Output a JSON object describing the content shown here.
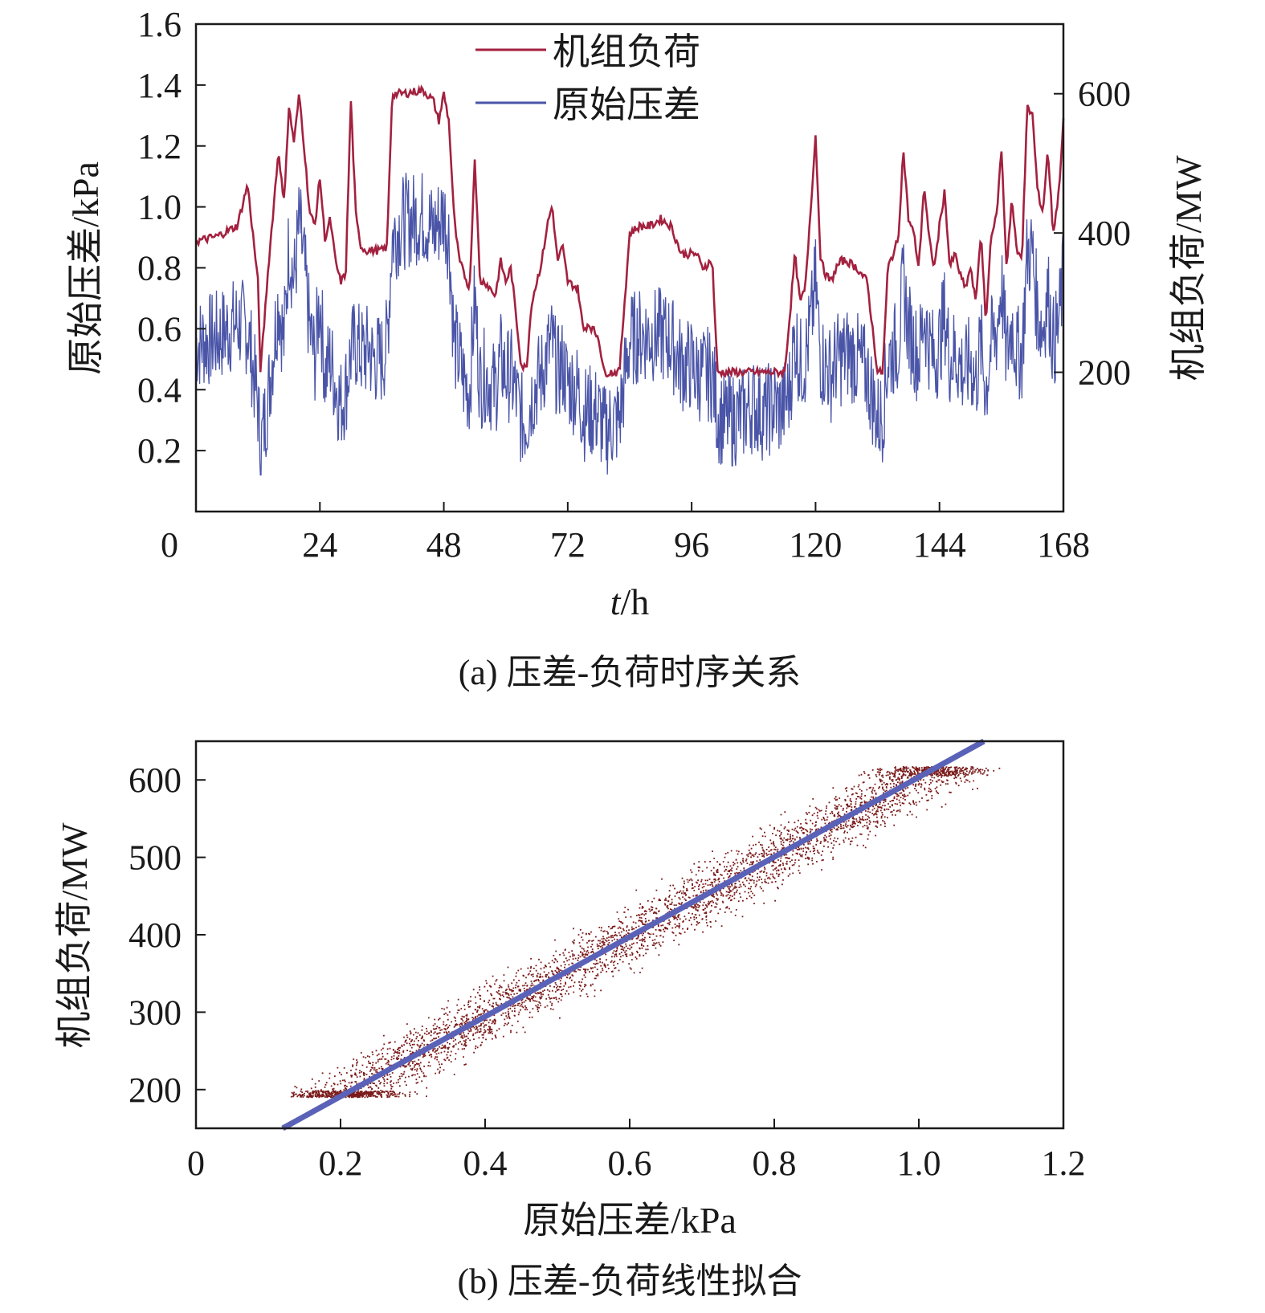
{
  "colors": {
    "load": "#a3213f",
    "dp": "#4a55a8",
    "fit": "#5a62b8",
    "scatter": "#7a1a1a",
    "axis": "#1a1a1a"
  },
  "chart_data": [
    {
      "id": "a",
      "type": "line",
      "caption": "(a) 压差-负荷时序关系",
      "xlabel_italic": "t",
      "xlabel_rest": "/h",
      "ylabel_left": "原始压差/kPa",
      "ylabel_right": "机组负荷/MW",
      "xlim": [
        0,
        168
      ],
      "ylim_left": [
        0,
        1.6
      ],
      "ylim_right": [
        0,
        700
      ],
      "x_ticks": [
        "0",
        "24",
        "48",
        "72",
        "96",
        "120",
        "144",
        "168"
      ],
      "y_left_ticks": [
        "0.2",
        "0.4",
        "0.6",
        "0.8",
        "1.0",
        "1.2",
        "1.4",
        "1.6"
      ],
      "y_right_ticks": [
        "200",
        "400",
        "600"
      ],
      "legend": [
        "机组负荷",
        "原始压差"
      ],
      "series": [
        {
          "name": "机组负荷",
          "axis": "right",
          "x": [
            0,
            4,
            8,
            10,
            12,
            12.5,
            14,
            16,
            17,
            18,
            19,
            20,
            21,
            22,
            23,
            24,
            25,
            26,
            27,
            28,
            29,
            30,
            31,
            32,
            33,
            33.5,
            34,
            35,
            36,
            37,
            38,
            40,
            44,
            46,
            47,
            48,
            49,
            50,
            51,
            52,
            53,
            54,
            55,
            56,
            57,
            58,
            59,
            60,
            61,
            62,
            63,
            64,
            65,
            66,
            67,
            68,
            69,
            70,
            71,
            72,
            74,
            75,
            76,
            78,
            79,
            80,
            82,
            84,
            86,
            88,
            90,
            92,
            94,
            96,
            97,
            98,
            100,
            101,
            102,
            104,
            106,
            108,
            110,
            112,
            113,
            114,
            115,
            116,
            117,
            118,
            119,
            120,
            121,
            122,
            123,
            124,
            125,
            126,
            128,
            130,
            132,
            133,
            134,
            136,
            137,
            138,
            139,
            140,
            141,
            142,
            143,
            144,
            145,
            146,
            147,
            148,
            149,
            150,
            151,
            152,
            153,
            154,
            155,
            156,
            157,
            158,
            159,
            160,
            161,
            162,
            163,
            164,
            165,
            166,
            167,
            168
          ],
          "y": [
            388,
            395,
            410,
            470,
            330,
            200,
            350,
            520,
            440,
            580,
            530,
            600,
            520,
            430,
            410,
            480,
            390,
            420,
            360,
            330,
            340,
            590,
            420,
            380,
            375,
            375,
            375,
            375,
            375,
            380,
            600,
            600,
            605,
            590,
            560,
            600,
            560,
            420,
            360,
            340,
            320,
            510,
            330,
            330,
            320,
            310,
            360,
            330,
            350,
            280,
            210,
            205,
            300,
            330,
            360,
            410,
            440,
            360,
            380,
            330,
            320,
            260,
            270,
            250,
            200,
            200,
            200,
            400,
            410,
            410,
            420,
            410,
            370,
            370,
            370,
            350,
            360,
            200,
            200,
            200,
            200,
            200,
            200,
            200,
            200,
            200,
            280,
            370,
            300,
            320,
            430,
            540,
            360,
            340,
            330,
            350,
            360,
            360,
            350,
            330,
            200,
            200,
            350,
            390,
            520,
            420,
            400,
            350,
            470,
            390,
            350,
            410,
            460,
            350,
            370,
            340,
            320,
            350,
            300,
            400,
            270,
            400,
            420,
            520,
            350,
            450,
            370,
            370,
            580,
            570,
            460,
            430,
            520,
            400,
            450,
            560
          ]
        },
        {
          "name": "原始压差",
          "axis": "left",
          "x": [
            0,
            4,
            8,
            10,
            12,
            12.5,
            14,
            16,
            17,
            18,
            19,
            20,
            21,
            22,
            23,
            24,
            25,
            26,
            27,
            28,
            29,
            30,
            31,
            32,
            33,
            33.5,
            34,
            35,
            36,
            37,
            38,
            40,
            44,
            46,
            47,
            48,
            49,
            50,
            51,
            52,
            53,
            54,
            55,
            56,
            57,
            58,
            59,
            60,
            61,
            62,
            63,
            64,
            65,
            66,
            67,
            68,
            69,
            70,
            71,
            72,
            74,
            75,
            76,
            78,
            79,
            80,
            82,
            84,
            86,
            88,
            90,
            92,
            94,
            96,
            97,
            98,
            100,
            101,
            102,
            104,
            106,
            108,
            110,
            112,
            113,
            114,
            115,
            116,
            117,
            118,
            119,
            120,
            121,
            122,
            123,
            124,
            125,
            126,
            128,
            130,
            132,
            133,
            134,
            136,
            137,
            138,
            139,
            140,
            141,
            142,
            143,
            144,
            145,
            146,
            147,
            148,
            149,
            150,
            151,
            152,
            153,
            154,
            155,
            156,
            157,
            158,
            159,
            160,
            161,
            162,
            163,
            164,
            165,
            166,
            167,
            168
          ],
          "y": [
            0.55,
            0.57,
            0.62,
            0.6,
            0.35,
            0.2,
            0.38,
            0.7,
            0.55,
            0.88,
            0.75,
            0.95,
            0.8,
            0.6,
            0.5,
            0.7,
            0.45,
            0.5,
            0.42,
            0.35,
            0.4,
            0.52,
            0.55,
            0.52,
            0.52,
            0.55,
            0.5,
            0.5,
            0.5,
            0.55,
            0.9,
            0.95,
            0.97,
            0.92,
            0.95,
            0.98,
            0.9,
            0.55,
            0.5,
            0.42,
            0.4,
            0.7,
            0.42,
            0.45,
            0.42,
            0.4,
            0.5,
            0.45,
            0.45,
            0.38,
            0.3,
            0.3,
            0.38,
            0.42,
            0.45,
            0.52,
            0.55,
            0.45,
            0.48,
            0.42,
            0.4,
            0.32,
            0.33,
            0.32,
            0.26,
            0.28,
            0.3,
            0.56,
            0.58,
            0.58,
            0.58,
            0.56,
            0.48,
            0.48,
            0.45,
            0.45,
            0.45,
            0.32,
            0.3,
            0.3,
            0.32,
            0.35,
            0.32,
            0.35,
            0.33,
            0.35,
            0.4,
            0.58,
            0.48,
            0.5,
            0.6,
            0.75,
            0.5,
            0.48,
            0.45,
            0.5,
            0.5,
            0.52,
            0.5,
            0.45,
            0.3,
            0.32,
            0.5,
            0.55,
            0.75,
            0.6,
            0.55,
            0.5,
            0.65,
            0.55,
            0.5,
            0.55,
            0.65,
            0.5,
            0.52,
            0.48,
            0.45,
            0.5,
            0.42,
            0.55,
            0.4,
            0.55,
            0.58,
            0.75,
            0.5,
            0.62,
            0.52,
            0.52,
            0.85,
            0.85,
            0.65,
            0.6,
            0.72,
            0.55,
            0.6,
            0.78
          ]
        }
      ]
    },
    {
      "id": "b",
      "type": "scatter",
      "caption": "(b) 压差-负荷线性拟合",
      "xlabel": "原始压差/kPa",
      "ylabel": "机组负荷/MW",
      "xlim": [
        0,
        1.2
      ],
      "ylim": [
        150,
        650
      ],
      "x_ticks": [
        "0",
        "0.2",
        "0.4",
        "0.6",
        "0.8",
        "1.0",
        "1.2"
      ],
      "y_ticks": [
        "200",
        "300",
        "400",
        "500",
        "600"
      ],
      "fit_line": {
        "x": [
          0.12,
          1.09
        ],
        "y": [
          150,
          650
        ]
      },
      "cluster_centers": [
        {
          "x": 0.3,
          "y": 190
        },
        {
          "x": 0.35,
          "y": 235
        },
        {
          "x": 0.4,
          "y": 320
        },
        {
          "x": 0.45,
          "y": 340
        },
        {
          "x": 0.5,
          "y": 360
        },
        {
          "x": 0.55,
          "y": 390
        },
        {
          "x": 0.6,
          "y": 410
        },
        {
          "x": 0.7,
          "y": 440
        },
        {
          "x": 0.8,
          "y": 490
        },
        {
          "x": 0.9,
          "y": 560
        },
        {
          "x": 0.97,
          "y": 610
        },
        {
          "x": 1.02,
          "y": 612
        }
      ]
    }
  ]
}
